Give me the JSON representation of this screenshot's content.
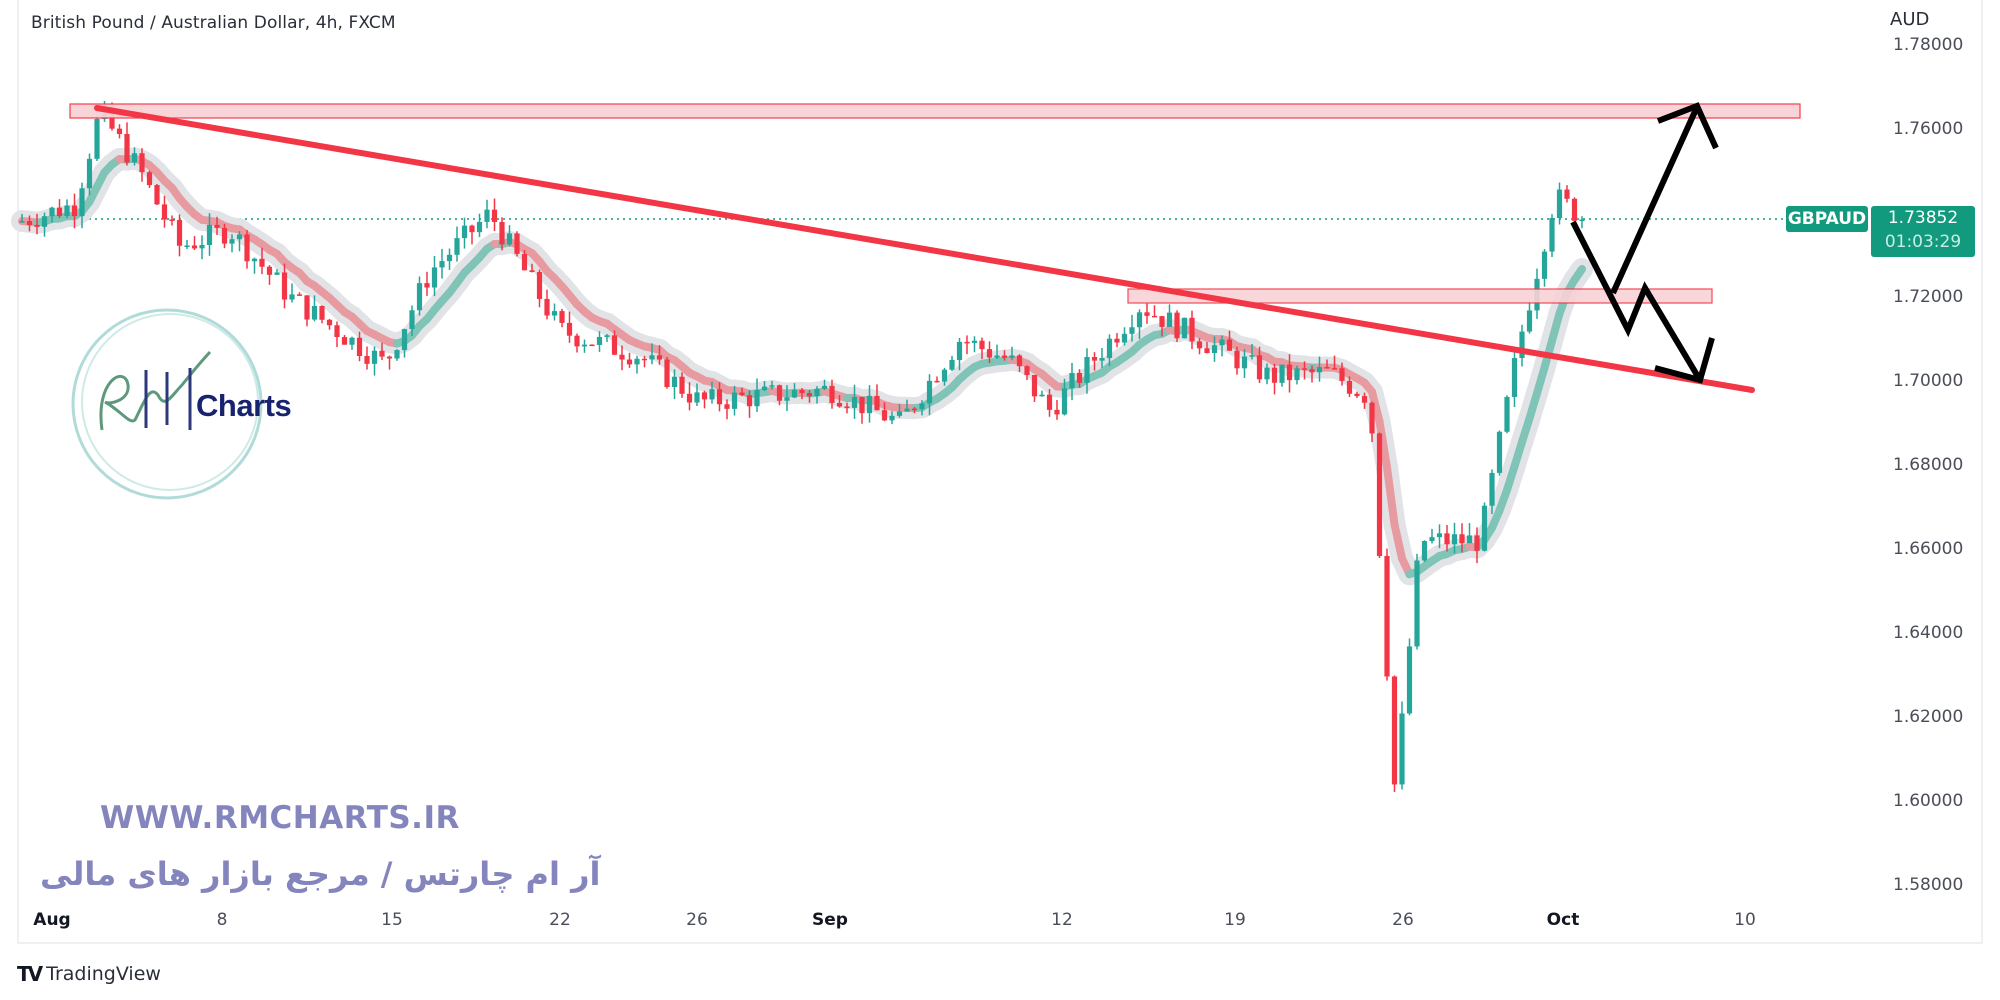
{
  "header": {
    "title": "British Pound / Australian Dollar, 4h, FXCM"
  },
  "price_axis": {
    "unit": "AUD",
    "ticks": [
      "1.78000",
      "1.76000",
      "1.72000",
      "1.70000",
      "1.68000",
      "1.66000",
      "1.64000",
      "1.62000",
      "1.60000",
      "1.58000"
    ],
    "symbol_label": "GBPAUD",
    "last_price": "1.73852",
    "countdown": "01:03:29"
  },
  "time_axis": {
    "ticks": [
      {
        "label": "Aug",
        "bold": true
      },
      {
        "label": "8",
        "bold": false
      },
      {
        "label": "15",
        "bold": false
      },
      {
        "label": "22",
        "bold": false
      },
      {
        "label": "26",
        "bold": false
      },
      {
        "label": "Sep",
        "bold": true
      },
      {
        "label": "12",
        "bold": false
      },
      {
        "label": "19",
        "bold": false
      },
      {
        "label": "26",
        "bold": false
      },
      {
        "label": "Oct",
        "bold": true
      },
      {
        "label": "10",
        "bold": false
      }
    ]
  },
  "watermark": {
    "logo_text": "Charts",
    "url": "WWW.RMCHARTS.IR",
    "persian": "آر ام چارتس / مرجع بازار های مالی"
  },
  "footer": {
    "brand_mark": "TV",
    "brand": "TradingView"
  },
  "colors": {
    "up": "#26a69a",
    "down": "#f23645",
    "trendline": "#f23645",
    "zone_fill": "#f8d2d6",
    "zone_border": "#f23645",
    "label_bg": "#129a7e",
    "watermark": "#8585bd",
    "arrow": "#000000"
  },
  "chart_data": {
    "type": "candlestick",
    "title": "British Pound / Australian Dollar, 4h, FXCM",
    "xlabel": "",
    "ylabel": "AUD",
    "ylim": [
      1.575,
      1.785
    ],
    "x_tick_labels": [
      "Aug",
      "8",
      "15",
      "22",
      "26",
      "Sep",
      "12",
      "19",
      "26",
      "Oct",
      "10"
    ],
    "last_price": 1.73852,
    "path_anchors": [
      {
        "date": "Aug 1",
        "price": 1.738
      },
      {
        "date": "Aug 3",
        "price": 1.742
      },
      {
        "date": "Aug 4",
        "price": 1.764
      },
      {
        "date": "Aug 6",
        "price": 1.75
      },
      {
        "date": "Aug 8",
        "price": 1.732
      },
      {
        "date": "Aug 10",
        "price": 1.736
      },
      {
        "date": "Aug 12",
        "price": 1.72
      },
      {
        "date": "Aug 15",
        "price": 1.704
      },
      {
        "date": "Aug 17",
        "price": 1.726
      },
      {
        "date": "Aug 19",
        "price": 1.74
      },
      {
        "date": "Aug 22",
        "price": 1.712
      },
      {
        "date": "Aug 25",
        "price": 1.706
      },
      {
        "date": "Aug 27",
        "price": 1.695
      },
      {
        "date": "Sep 1",
        "price": 1.698
      },
      {
        "date": "Sep 5",
        "price": 1.69
      },
      {
        "date": "Sep 7",
        "price": 1.71
      },
      {
        "date": "Sep 10",
        "price": 1.705
      },
      {
        "date": "Sep 12",
        "price": 1.693
      },
      {
        "date": "Sep 15",
        "price": 1.718
      },
      {
        "date": "Sep 17",
        "price": 1.71
      },
      {
        "date": "Sep 20",
        "price": 1.701
      },
      {
        "date": "Sep 23",
        "price": 1.702
      },
      {
        "date": "Sep 25",
        "price": 1.696
      },
      {
        "date": "Sep 26",
        "price": 1.602
      },
      {
        "date": "Sep 27",
        "price": 1.662
      },
      {
        "date": "Sep 29",
        "price": 1.662
      },
      {
        "date": "Sep 30",
        "price": 1.71
      },
      {
        "date": "Oct 1",
        "price": 1.744
      },
      {
        "date": "Oct 2",
        "price": 1.7385
      }
    ],
    "extremes": {
      "high": 1.7645,
      "low": 1.592
    },
    "annotations": [
      {
        "type": "zone",
        "label": "resistance",
        "from": 1.761,
        "to": 1.7645
      },
      {
        "type": "zone",
        "label": "support",
        "from": 1.718,
        "to": 1.7215
      },
      {
        "type": "trendline",
        "from": {
          "date": "Aug 3",
          "price": 1.765
        },
        "to": {
          "date": "Oct 11",
          "price": 1.6975
        }
      },
      {
        "type": "arrow",
        "label": "scenario up",
        "to": 1.7655
      },
      {
        "type": "arrow",
        "label": "scenario down",
        "to": 1.699
      }
    ]
  }
}
